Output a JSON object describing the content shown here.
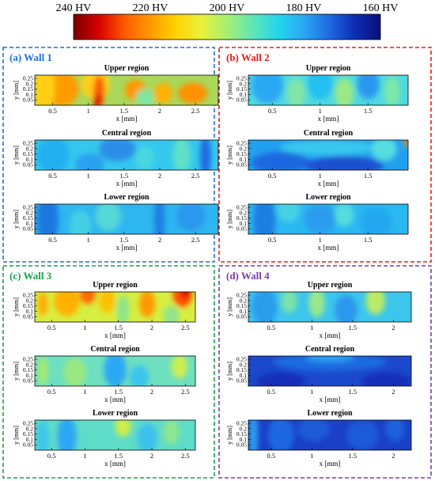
{
  "colorbar": {
    "ticks": [
      "240 HV",
      "220 HV",
      "200 HV",
      "180 HV",
      "160 HV"
    ],
    "tick_values": [
      240,
      220,
      200,
      180,
      160
    ],
    "stops": [
      "#7a0000",
      "#d80000",
      "#ff5a00",
      "#ff9a00",
      "#ffd200",
      "#e9f23a",
      "#a6ef72",
      "#5fe6b8",
      "#22d6ec",
      "#2aa8f4",
      "#1f6ae0",
      "#0c2db4",
      "#0a1078"
    ]
  },
  "axis_labels": {
    "x": "x [mm]",
    "y": "y [mm]"
  },
  "y_ticks": [
    "0.25",
    "0.2",
    "0.15",
    "0.1",
    "0.05"
  ],
  "panels": [
    {
      "title": "(a) Wall 1",
      "color": "#1f6fd6",
      "regions": [
        {
          "name": "Upper region",
          "bg": "#a9d85a",
          "blobs": [
            [
              "#ff9c00",
              0.15,
              0.45,
              0.09,
              0.6
            ],
            [
              "#ffcf12",
              0.05,
              0.4,
              0.06,
              0.8
            ],
            [
              "#ffce1a",
              0.33,
              0.3,
              0.08,
              0.5
            ],
            [
              "#ff5a00",
              0.35,
              0.55,
              0.03,
              0.55
            ],
            [
              "#d80000",
              0.34,
              0.85,
              0.02,
              0.25
            ],
            [
              "#ff9a00",
              0.55,
              0.5,
              0.06,
              0.35
            ],
            [
              "#ffb000",
              0.7,
              0.6,
              0.05,
              0.35
            ],
            [
              "#ff9000",
              0.86,
              0.6,
              0.08,
              0.35
            ],
            [
              "#7fe59e",
              0.6,
              0.75,
              0.05,
              0.3
            ]
          ]
        },
        {
          "name": "Central region",
          "bg": "#35c8ee",
          "blobs": [
            [
              "#22b0f0",
              0.1,
              0.5,
              0.09,
              0.6
            ],
            [
              "#2a8ee8",
              0.45,
              0.3,
              0.1,
              0.4
            ],
            [
              "#5fe0c8",
              0.8,
              0.5,
              0.05,
              0.6
            ],
            [
              "#1f6ae0",
              0.93,
              0.55,
              0.03,
              0.7
            ],
            [
              "#49d8df",
              0.6,
              0.6,
              0.05,
              0.4
            ],
            [
              "#2aa0f0",
              0.3,
              0.8,
              0.08,
              0.35
            ]
          ]
        },
        {
          "name": "Lower region",
          "bg": "#2eb6f0",
          "blobs": [
            [
              "#1f78e0",
              0.07,
              0.5,
              0.06,
              0.8
            ],
            [
              "#1f80e4",
              0.68,
              0.5,
              0.03,
              0.9
            ],
            [
              "#55d8d8",
              0.4,
              0.4,
              0.07,
              0.5
            ],
            [
              "#2a98ee",
              0.85,
              0.4,
              0.08,
              0.5
            ],
            [
              "#45cfe6",
              0.25,
              0.7,
              0.06,
              0.5
            ]
          ]
        }
      ],
      "x_ticks": [
        "0.5",
        "1",
        "1.5",
        "2",
        "2.5"
      ],
      "x_tick_values": [
        0.5,
        1,
        1.5,
        2,
        2.5
      ],
      "x_range": [
        0.25,
        2.82
      ]
    },
    {
      "title": "(b) Wall 2",
      "color": "#e02020",
      "regions": [
        {
          "name": "Upper region",
          "bg": "#4fd8e0",
          "blobs": [
            [
              "#2aa8f4",
              0.12,
              0.35,
              0.1,
              0.6
            ],
            [
              "#7fe5a8",
              0.3,
              0.6,
              0.06,
              0.5
            ],
            [
              "#9ae986",
              0.6,
              0.6,
              0.06,
              0.5
            ],
            [
              "#2a98ee",
              0.75,
              0.3,
              0.07,
              0.5
            ],
            [
              "#7be8a8",
              0.9,
              0.55,
              0.05,
              0.5
            ],
            [
              "#22c0f0",
              0.45,
              0.3,
              0.08,
              0.5
            ]
          ]
        },
        {
          "name": "Central region",
          "bg": "#22a0f0",
          "blobs": [
            [
              "#1f68e0",
              0.2,
              0.75,
              0.18,
              0.35
            ],
            [
              "#1a50d0",
              0.6,
              0.85,
              0.25,
              0.3
            ],
            [
              "#38c8ee",
              0.5,
              0.25,
              0.3,
              0.25
            ],
            [
              "#55dde0",
              0.85,
              0.3,
              0.08,
              0.4
            ],
            [
              "#ff9a00",
              0.99,
              0.05,
              0.015,
              0.2
            ],
            [
              "#d80000",
              1.0,
              0.0,
              0.01,
              0.12
            ]
          ]
        },
        {
          "name": "Lower region",
          "bg": "#2ab8f2",
          "blobs": [
            [
              "#1f7ee2",
              0.1,
              0.55,
              0.07,
              0.8
            ],
            [
              "#47d2e4",
              0.25,
              0.2,
              0.07,
              0.4
            ],
            [
              "#2a9cee",
              0.45,
              0.5,
              0.1,
              0.5
            ],
            [
              "#55dcdc",
              0.6,
              0.35,
              0.06,
              0.4
            ],
            [
              "#22a8f0",
              0.8,
              0.6,
              0.1,
              0.5
            ]
          ]
        }
      ],
      "x_ticks": [
        "0.5",
        "1",
        "1.5"
      ],
      "x_tick_values": [
        0.5,
        1,
        1.5
      ],
      "x_range": [
        0.25,
        1.92
      ]
    },
    {
      "title": "(c) Wall 3",
      "color": "#16a24a",
      "regions": [
        {
          "name": "Upper region",
          "bg": "#d8ee40",
          "blobs": [
            [
              "#ffb000",
              0.2,
              0.3,
              0.08,
              0.5
            ],
            [
              "#ffc000",
              0.45,
              0.3,
              0.05,
              0.4
            ],
            [
              "#ff6a00",
              0.33,
              0.1,
              0.05,
              0.3
            ],
            [
              "#ff9800",
              0.7,
              0.4,
              0.05,
              0.45
            ],
            [
              "#ff5000",
              0.92,
              0.1,
              0.06,
              0.4
            ],
            [
              "#d80000",
              0.94,
              0.0,
              0.03,
              0.2
            ],
            [
              "#8fe58a",
              0.55,
              0.6,
              0.04,
              0.5
            ],
            [
              "#90e48e",
              0.85,
              0.8,
              0.05,
              0.35
            ],
            [
              "#ffaa00",
              0.05,
              0.4,
              0.03,
              0.4
            ]
          ]
        },
        {
          "name": "Central region",
          "bg": "#6ee0c0",
          "blobs": [
            [
              "#9ae882",
              0.25,
              0.55,
              0.07,
              0.5
            ],
            [
              "#2aa8f4",
              0.5,
              0.45,
              0.07,
              0.6
            ],
            [
              "#cdee50",
              0.9,
              0.35,
              0.05,
              0.4
            ],
            [
              "#3ac4ee",
              0.65,
              0.7,
              0.06,
              0.4
            ],
            [
              "#a8ea70",
              0.05,
              0.5,
              0.03,
              0.5
            ]
          ]
        },
        {
          "name": "Lower region",
          "bg": "#5fdcc8",
          "blobs": [
            [
              "#2aa8f4",
              0.2,
              0.55,
              0.06,
              0.7
            ],
            [
              "#cfee48",
              0.55,
              0.2,
              0.05,
              0.35
            ],
            [
              "#3ac0ee",
              0.7,
              0.6,
              0.06,
              0.5
            ],
            [
              "#8ee68e",
              0.85,
              0.4,
              0.05,
              0.4
            ],
            [
              "#3cc6ec",
              0.05,
              0.6,
              0.04,
              0.6
            ]
          ]
        }
      ],
      "x_ticks": [
        "0.5",
        "1",
        "1.5",
        "2",
        "2.5"
      ],
      "x_tick_values": [
        0.5,
        1,
        1.5,
        2,
        2.5
      ],
      "x_range": [
        0.25,
        2.65
      ]
    },
    {
      "title": "(d) Wall 4",
      "color": "#7a3ca8",
      "regions": [
        {
          "name": "Upper region",
          "bg": "#3cc6ec",
          "blobs": [
            [
              "#ffe020",
              0.78,
              0.1,
              0.05,
              0.35
            ],
            [
              "#b8ec66",
              0.78,
              0.3,
              0.06,
              0.45
            ],
            [
              "#9ae88a",
              0.42,
              0.35,
              0.05,
              0.5
            ],
            [
              "#2a9cee",
              0.1,
              0.5,
              0.08,
              0.6
            ],
            [
              "#2a98ee",
              0.6,
              0.6,
              0.07,
              0.5
            ],
            [
              "#7ae3a8",
              0.25,
              0.3,
              0.05,
              0.4
            ]
          ]
        },
        {
          "name": "Central region",
          "bg": "#1b48cc",
          "blobs": [
            [
              "#1f6ae0",
              0.5,
              0.2,
              0.35,
              0.3
            ],
            [
              "#2aa0f0",
              0.5,
              0.05,
              0.15,
              0.15
            ],
            [
              "#142fb8",
              0.2,
              0.85,
              0.15,
              0.3
            ],
            [
              "#142fb8",
              0.85,
              0.85,
              0.15,
              0.3
            ]
          ]
        },
        {
          "name": "Lower region",
          "bg": "#1a40c8",
          "blobs": [
            [
              "#2a9cee",
              0.03,
              0.5,
              0.03,
              0.9
            ],
            [
              "#1f68e0",
              0.2,
              0.5,
              0.08,
              0.6
            ],
            [
              "#1f5ad6",
              0.4,
              0.3,
              0.1,
              0.4
            ],
            [
              "#1f5ad8",
              0.7,
              0.5,
              0.1,
              0.5
            ],
            [
              "#1f60dc",
              0.9,
              0.3,
              0.06,
              0.4
            ]
          ]
        }
      ],
      "x_ticks": [
        "0.5",
        "1",
        "1.5",
        "2"
      ],
      "x_tick_values": [
        0.5,
        1,
        1.5,
        2
      ],
      "x_range": [
        0.22,
        2.22
      ]
    }
  ],
  "chart_data": {
    "type": "heatmap",
    "colorbar_ticks_hv": [
      240,
      220,
      200,
      180,
      160
    ],
    "xlabel": "x [mm]",
    "ylabel": "y [mm]",
    "y_ticks": [
      0.25,
      0.2,
      0.15,
      0.1,
      0.05
    ],
    "panels": [
      "(a) Wall 1",
      "(b) Wall 2",
      "(c) Wall 3",
      "(d) Wall 4"
    ],
    "regions": [
      "Upper region",
      "Central region",
      "Lower region"
    ]
  }
}
